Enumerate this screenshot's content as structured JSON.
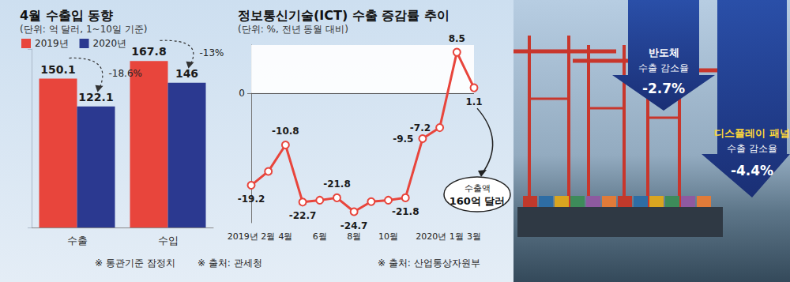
{
  "chart_data": [
    {
      "type": "bar",
      "title": "4월 수출입 동향",
      "subtitle": "(단위: 억 달러, 1~10일 기준)",
      "categories": [
        "수출",
        "수입"
      ],
      "series": [
        {
          "name": "2019년",
          "color": "#e8453c",
          "values": [
            150.1,
            167.8
          ]
        },
        {
          "name": "2020년",
          "color": "#2b3990",
          "values": [
            122.1,
            146
          ]
        }
      ],
      "ylim": [
        0,
        180
      ],
      "yticks": [
        0,
        180
      ],
      "data_labels": true,
      "tick_labels": "x",
      "legend": "top-left",
      "grid": false,
      "annotations": [
        {
          "category": "수출",
          "label": "-18.6%"
        },
        {
          "category": "수입",
          "label": "-13%"
        }
      ],
      "notes": [
        "※ 통관기준 잠정치",
        "※ 출처: 관세청"
      ]
    },
    {
      "type": "line",
      "title": "정보통신기술(ICT) 수출 증감률 추이",
      "subtitle": "(단위: %, 전년 동월 대비)",
      "categories": [
        "2019년 2월",
        null,
        "4월",
        null,
        "6월",
        null,
        "8월",
        null,
        "10월",
        null,
        null,
        "2020년 1월",
        null,
        "3월"
      ],
      "values": [
        -19.2,
        -16.3,
        -10.8,
        -22.7,
        -22.3,
        -21.8,
        -24.7,
        -22.6,
        -22.3,
        -21.8,
        -9.5,
        -7.2,
        8.5,
        1.1
      ],
      "value_labels": [
        "-19.2",
        null,
        "-10.8",
        "-22.7",
        null,
        "-21.8",
        "-24.7",
        null,
        null,
        "-21.8",
        "-9.5",
        "-7.2",
        "8.5",
        "1.1"
      ],
      "color": "#e8453c",
      "marker": "circle",
      "ylim": [
        -27,
        10
      ],
      "yticks": [
        0
      ],
      "grid": true,
      "data_labels": true,
      "annotations": [
        {
          "text": "수출액",
          "label": "160억 달러"
        }
      ],
      "notes": [
        "※ 출처: 산업통상자원부"
      ]
    }
  ],
  "callouts": [
    {
      "title": "반도체",
      "text": "수출 감소율",
      "label": "-2.7%"
    },
    {
      "title": "디스플레이 패널",
      "text": "수출 감소율",
      "label": "-4.4%"
    }
  ]
}
